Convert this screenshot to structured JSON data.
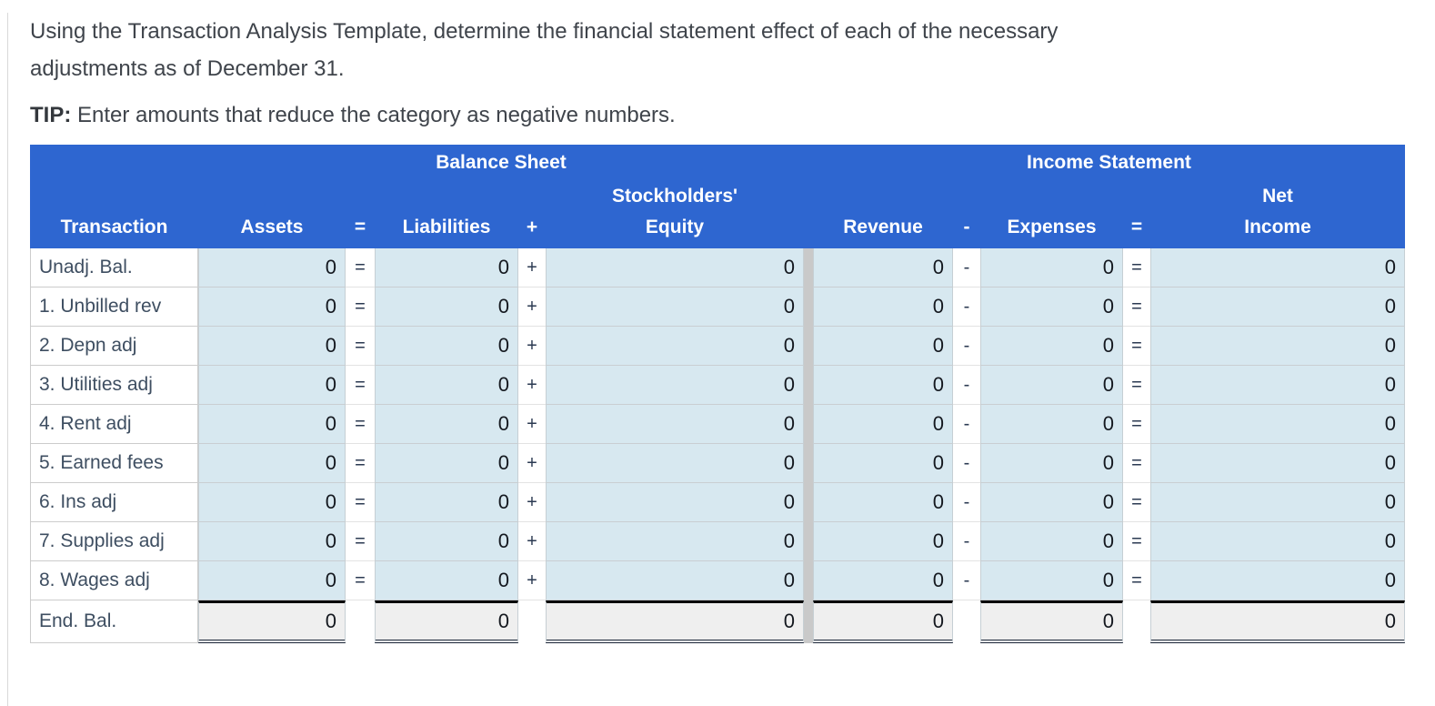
{
  "intro": {
    "line1": "Using the Transaction Analysis Template, determine the financial statement effect of each of the necessary",
    "line2": "adjustments as of December 31.",
    "tip_label": "TIP:",
    "tip_text": " Enter amounts that reduce the category as negative numbers."
  },
  "table": {
    "sections": {
      "balance_sheet": "Balance Sheet",
      "income_statement": "Income Statement"
    },
    "columns": {
      "transaction": "Transaction",
      "assets": "Assets",
      "eq1": "=",
      "liabilities": "Liabilities",
      "plus": "+",
      "equity_line1": "Stockholders'",
      "equity_line2": "Equity",
      "revenue": "Revenue",
      "minus": "-",
      "expenses": "Expenses",
      "eq2": "=",
      "net_income_line1": "Net",
      "net_income_line2": "Income"
    },
    "rows": [
      {
        "label": "Unadj. Bal.",
        "assets": "0",
        "liabilities": "0",
        "equity": "0",
        "revenue": "0",
        "expenses": "0",
        "net_income": "0"
      },
      {
        "label": "1. Unbilled rev",
        "assets": "0",
        "liabilities": "0",
        "equity": "0",
        "revenue": "0",
        "expenses": "0",
        "net_income": "0"
      },
      {
        "label": "2. Depn adj",
        "assets": "0",
        "liabilities": "0",
        "equity": "0",
        "revenue": "0",
        "expenses": "0",
        "net_income": "0"
      },
      {
        "label": "3. Utilities adj",
        "assets": "0",
        "liabilities": "0",
        "equity": "0",
        "revenue": "0",
        "expenses": "0",
        "net_income": "0"
      },
      {
        "label": "4. Rent adj",
        "assets": "0",
        "liabilities": "0",
        "equity": "0",
        "revenue": "0",
        "expenses": "0",
        "net_income": "0"
      },
      {
        "label": "5. Earned fees",
        "assets": "0",
        "liabilities": "0",
        "equity": "0",
        "revenue": "0",
        "expenses": "0",
        "net_income": "0"
      },
      {
        "label": "6. Ins adj",
        "assets": "0",
        "liabilities": "0",
        "equity": "0",
        "revenue": "0",
        "expenses": "0",
        "net_income": "0"
      },
      {
        "label": "7. Supplies adj",
        "assets": "0",
        "liabilities": "0",
        "equity": "0",
        "revenue": "0",
        "expenses": "0",
        "net_income": "0"
      },
      {
        "label": "8. Wages adj",
        "assets": "0",
        "liabilities": "0",
        "equity": "0",
        "revenue": "0",
        "expenses": "0",
        "net_income": "0"
      },
      {
        "label": "End. Bal.",
        "assets": "0",
        "liabilities": "0",
        "equity": "0",
        "revenue": "0",
        "expenses": "0",
        "net_income": "0"
      }
    ]
  },
  "colors": {
    "header_blue": "#2e66d0",
    "cell_blue": "#d7e8f0",
    "total_gray": "#efefef",
    "divider_gray": "#c9c9c9",
    "label_text": "#3e4e61",
    "value_text": "#14181f"
  }
}
